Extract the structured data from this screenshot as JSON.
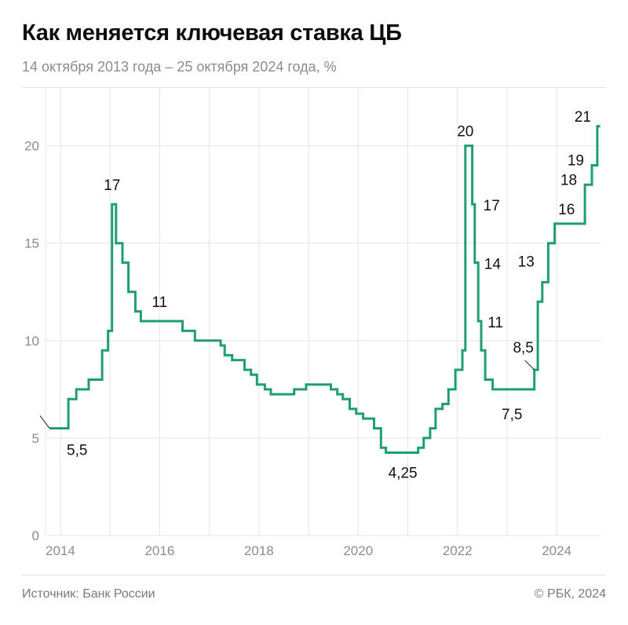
{
  "header": {
    "title": "Как меняется ключевая ставка ЦБ",
    "subtitle": "14 октября 2013 года – 25 октября 2024 года, %"
  },
  "footer": {
    "source": "Источник: Банк России",
    "copyright": "© РБК, 2024"
  },
  "colors": {
    "line": "#1f9e73",
    "grid": "#e4e4e4",
    "tick_text": "#8c8c8c",
    "label_text": "#111111"
  },
  "chart_data": {
    "type": "line",
    "step": true,
    "title": "Как меняется ключевая ставка ЦБ",
    "xlabel": "",
    "ylabel": "",
    "xlim": [
      2013.7,
      2024.9
    ],
    "ylim": [
      0,
      22
    ],
    "yticks": [
      0,
      5,
      10,
      15,
      20
    ],
    "ytick_labels": [
      "0",
      "5",
      "10",
      "15",
      "20"
    ],
    "xticks": [
      2014,
      2016,
      2018,
      2020,
      2022,
      2024
    ],
    "xtick_labels": [
      "2014",
      "2016",
      "2018",
      "2020",
      "2022",
      "2024"
    ],
    "grid": true,
    "series": [
      {
        "points": [
          [
            2013.78,
            5.5
          ],
          [
            2014.16,
            7.0
          ],
          [
            2014.32,
            7.5
          ],
          [
            2014.57,
            8.0
          ],
          [
            2014.84,
            9.5
          ],
          [
            2014.96,
            10.5
          ],
          [
            2015.04,
            17.0
          ],
          [
            2015.12,
            15.0
          ],
          [
            2015.25,
            14.0
          ],
          [
            2015.37,
            12.5
          ],
          [
            2015.51,
            11.5
          ],
          [
            2015.62,
            11.0
          ],
          [
            2016.46,
            10.5
          ],
          [
            2016.71,
            10.0
          ],
          [
            2017.23,
            9.75
          ],
          [
            2017.31,
            9.25
          ],
          [
            2017.46,
            9.0
          ],
          [
            2017.71,
            8.5
          ],
          [
            2017.84,
            8.25
          ],
          [
            2017.96,
            7.75
          ],
          [
            2018.12,
            7.5
          ],
          [
            2018.24,
            7.25
          ],
          [
            2018.71,
            7.5
          ],
          [
            2018.95,
            7.75
          ],
          [
            2019.45,
            7.5
          ],
          [
            2019.58,
            7.25
          ],
          [
            2019.69,
            7.0
          ],
          [
            2019.83,
            6.5
          ],
          [
            2019.96,
            6.25
          ],
          [
            2020.1,
            6.0
          ],
          [
            2020.32,
            5.5
          ],
          [
            2020.46,
            4.5
          ],
          [
            2020.56,
            4.25
          ],
          [
            2021.21,
            4.5
          ],
          [
            2021.32,
            5.0
          ],
          [
            2021.45,
            5.5
          ],
          [
            2021.56,
            6.5
          ],
          [
            2021.7,
            6.75
          ],
          [
            2021.82,
            7.5
          ],
          [
            2021.96,
            8.5
          ],
          [
            2022.1,
            9.5
          ],
          [
            2022.16,
            20.0
          ],
          [
            2022.3,
            17.0
          ],
          [
            2022.35,
            14.0
          ],
          [
            2022.42,
            11.0
          ],
          [
            2022.48,
            9.5
          ],
          [
            2022.56,
            8.0
          ],
          [
            2022.71,
            7.5
          ],
          [
            2023.55,
            8.5
          ],
          [
            2023.62,
            12.0
          ],
          [
            2023.71,
            13.0
          ],
          [
            2023.83,
            15.0
          ],
          [
            2023.96,
            16.0
          ],
          [
            2024.57,
            18.0
          ],
          [
            2024.71,
            19.0
          ],
          [
            2024.82,
            21.0
          ],
          [
            2024.88,
            21.0
          ]
        ]
      }
    ],
    "annotations": [
      {
        "text": "5,5",
        "x": 2013.78,
        "y": 5.5
      },
      {
        "text": "17",
        "x": 2015.04,
        "y": 17.0
      },
      {
        "text": "11",
        "x": 2016.0,
        "y": 11.0
      },
      {
        "text": "4,25",
        "x": 2020.9,
        "y": 4.25
      },
      {
        "text": "20",
        "x": 2022.16,
        "y": 20.0
      },
      {
        "text": "17",
        "x": 2022.3,
        "y": 17.0
      },
      {
        "text": "14",
        "x": 2022.35,
        "y": 14.0
      },
      {
        "text": "11",
        "x": 2022.42,
        "y": 11.0
      },
      {
        "text": "7,5",
        "x": 2023.1,
        "y": 7.5
      },
      {
        "text": "8,5",
        "x": 2023.55,
        "y": 8.5
      },
      {
        "text": "13",
        "x": 2023.71,
        "y": 13.0
      },
      {
        "text": "16",
        "x": 2024.2,
        "y": 16.0
      },
      {
        "text": "18",
        "x": 2024.57,
        "y": 18.0
      },
      {
        "text": "19",
        "x": 2024.71,
        "y": 19.0
      },
      {
        "text": "21",
        "x": 2024.82,
        "y": 21.0
      }
    ]
  }
}
